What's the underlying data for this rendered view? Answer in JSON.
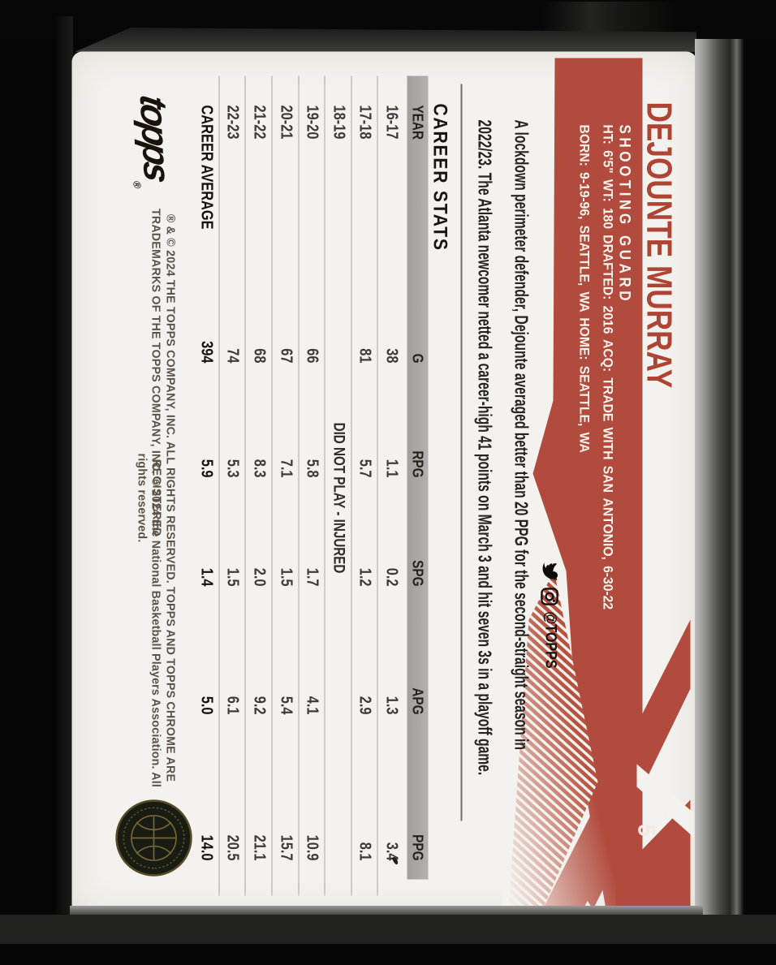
{
  "card": {
    "player_name": "DEJOUNTE MURRAY",
    "position": "SHOOTING GUARD",
    "bio_line1": "HT: 6'5\"  WT: 180  DRAFTED: 2016  ACQ: TRADE WITH SAN ANTONIO, 6-30-22",
    "bio_line2": "BORN: 9-19-96, SEATTLE, WA  HOME: SEATTLE, WA",
    "card_number": "5",
    "social_handle": "@TOPPS",
    "description_lines": [
      "A lockdown perimeter defender, Dejounte averaged better than 20 PPG for the second-straight season in",
      "2022/23. The Atlanta newcomer netted a career-high 41 points on March 3 and hit seven 3s in a playoff game."
    ],
    "stats_title": "CAREER STATS",
    "table": {
      "headers": [
        "YEAR",
        "G",
        "RPG",
        "SPG",
        "APG",
        "PPG"
      ],
      "rows": [
        {
          "year": "16-17",
          "g": "38",
          "rpg": "1.1",
          "spg": "0.2",
          "apg": "1.3",
          "ppg": "3.4"
        },
        {
          "year": "17-18",
          "g": "81",
          "rpg": "5.7",
          "spg": "1.2",
          "apg": "2.9",
          "ppg": "8.1"
        },
        {
          "year": "18-19",
          "dnp": "DID NOT PLAY - INJURED"
        },
        {
          "year": "19-20",
          "g": "66",
          "rpg": "5.8",
          "spg": "1.7",
          "apg": "4.1",
          "ppg": "10.9"
        },
        {
          "year": "20-21",
          "g": "67",
          "rpg": "7.1",
          "spg": "1.5",
          "apg": "5.4",
          "ppg": "15.7"
        },
        {
          "year": "21-22",
          "g": "68",
          "rpg": "8.3",
          "spg": "2.0",
          "apg": "9.2",
          "ppg": "21.1"
        },
        {
          "year": "22-23",
          "g": "74",
          "rpg": "5.3",
          "spg": "1.5",
          "apg": "6.1",
          "ppg": "20.5"
        },
        {
          "year": "CAREER AVERAGE",
          "g": "394",
          "rpg": "5.9",
          "spg": "1.4",
          "apg": "5.0",
          "ppg": "14.0",
          "career": true
        }
      ]
    },
    "brand": "topps",
    "brand_reg": "®",
    "copyright_line1": "® & © 2024 THE TOPPS COMPANY, INC. ALL RIGHTS RESERVED. TOPPS AND TOPPS CHROME ARE REGISTERED",
    "copyright_line2": "TRADEMARKS OF THE TOPPS COMPANY, INC. © 2024 the National Basketball Players Association. All rights reserved.",
    "colors": {
      "banner_red": "#b14b3d",
      "name_red": "#ad4434",
      "card_white": "#f4f2ee",
      "header_bar_gray": "#a9a7a5",
      "holder_black": "#060606"
    }
  }
}
